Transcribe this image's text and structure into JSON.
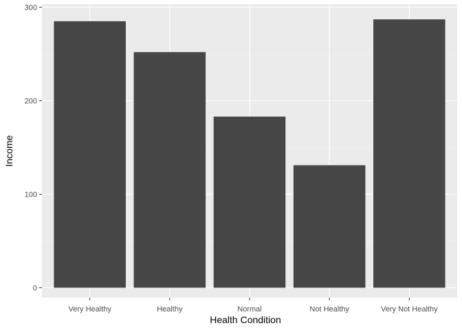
{
  "chart_data": {
    "type": "bar",
    "categories": [
      "Very Healthy",
      "Healthy",
      "Normal",
      "Not Healthy",
      "Very Not Healthy"
    ],
    "values": [
      285,
      252,
      183,
      131,
      287
    ],
    "xlabel": "Health Condition",
    "ylabel": "Income",
    "ylim": [
      0,
      300
    ],
    "yticks": [
      0,
      100,
      200,
      300
    ],
    "grid": true,
    "colors": {
      "bar": "#464646",
      "panel": "#ebebeb",
      "grid_major": "#ffffff",
      "grid_minor": "#f5f5f5",
      "tick": "#333333"
    }
  }
}
